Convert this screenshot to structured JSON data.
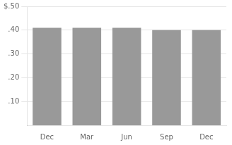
{
  "chart_data": {
    "type": "bar",
    "categories": [
      "Dec",
      "Mar",
      "Jun",
      "Sep",
      "Dec"
    ],
    "values": [
      0.41,
      0.41,
      0.41,
      0.4,
      0.4
    ],
    "color": "#999999",
    "ylim": [
      0,
      0.5
    ],
    "yticks": [
      {
        "value": 0.1,
        "label": ".10"
      },
      {
        "value": 0.2,
        "label": ".20"
      },
      {
        "value": 0.3,
        "label": ".30"
      },
      {
        "value": 0.4,
        "label": ".40"
      },
      {
        "value": 0.5,
        "label": "$.50"
      }
    ],
    "grid": true
  }
}
